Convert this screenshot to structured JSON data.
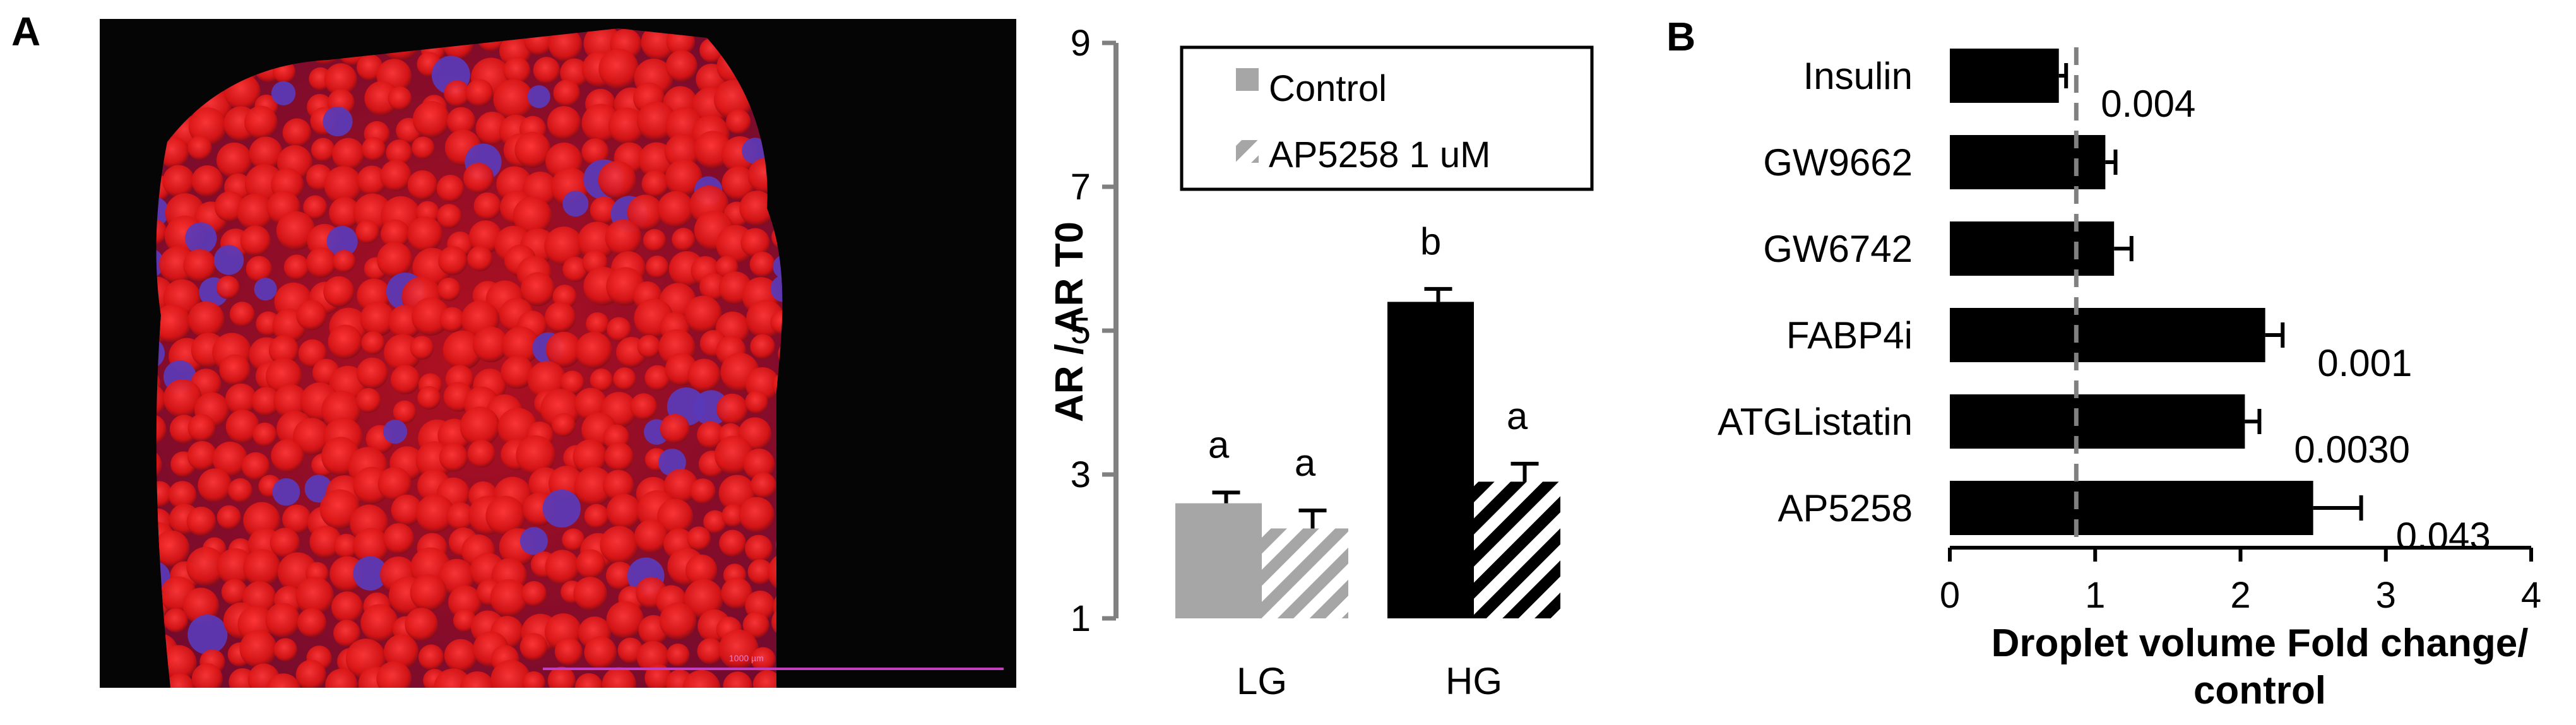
{
  "panel_a_label": "A",
  "panel_b_label": "B",
  "micrograph": {
    "scale_bar_label": "1000 µm",
    "colors": {
      "background": "#050505",
      "stain_red": "#d01010",
      "stain_blue": "#5a3ab8",
      "scale_bar": "#c040c0"
    }
  },
  "chart_data": [
    {
      "type": "bar",
      "title": "",
      "xlabel": "",
      "ylabel": "AR / AR T0",
      "ylim": [
        1,
        9
      ],
      "yticks": [
        1,
        3,
        5,
        7,
        9
      ],
      "grid": false,
      "legend_position": "top-center",
      "categories": [
        "LG",
        "HG"
      ],
      "series": [
        {
          "name": "Control",
          "values": [
            2.6,
            5.4
          ],
          "errors": [
            0.15,
            0.18
          ],
          "colors": [
            "#a6a6a6",
            "#000000"
          ],
          "pattern": "solid"
        },
        {
          "name": "AP5258 1 uM",
          "values": [
            2.25,
            2.9
          ],
          "errors": [
            0.25,
            0.25
          ],
          "colors": [
            "#a6a6a6",
            "#000000"
          ],
          "pattern": "diagonal-stripes"
        }
      ],
      "annotations": [
        {
          "category": "LG",
          "series": 0,
          "text": "a"
        },
        {
          "category": "LG",
          "series": 1,
          "text": "a"
        },
        {
          "category": "HG",
          "series": 0,
          "text": "b"
        },
        {
          "category": "HG",
          "series": 1,
          "text": "a"
        }
      ]
    },
    {
      "type": "bar",
      "orientation": "horizontal",
      "title": "",
      "xlabel_line1": "Droplet volume Fold change/",
      "xlabel_line2": "control",
      "ylabel": "",
      "xlim": [
        0,
        4
      ],
      "xticks": [
        0,
        1,
        2,
        3,
        4
      ],
      "grid": false,
      "reference_line": 0.87,
      "categories": [
        "Insulin",
        "GW9662",
        "GW6742",
        "FABP4i",
        "ATGListatin",
        "AP5258"
      ],
      "values": [
        0.75,
        1.07,
        1.13,
        2.17,
        2.03,
        2.5
      ],
      "errors": [
        0.05,
        0.07,
        0.12,
        0.12,
        0.1,
        0.33
      ],
      "pvalues": [
        "0.004",
        "",
        "",
        "0.001",
        "0.0030",
        "0.043"
      ],
      "bar_color": "#000000"
    }
  ]
}
